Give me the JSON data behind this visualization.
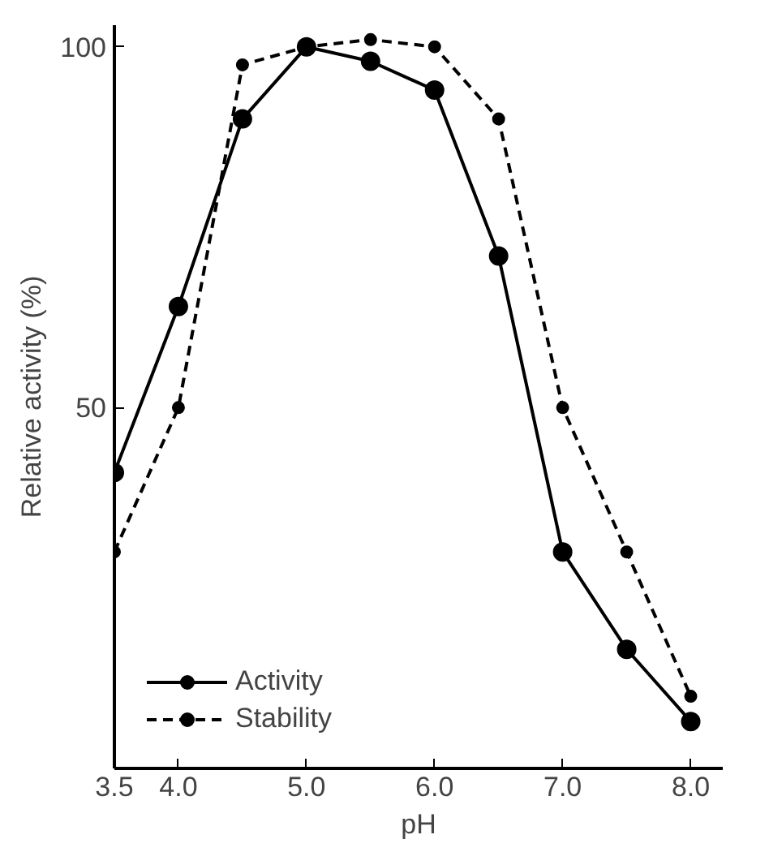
{
  "chart_data": {
    "type": "line",
    "xlabel": "pH",
    "ylabel": "Relative activity (%)",
    "x": [
      3.5,
      4.0,
      4.5,
      5.0,
      5.5,
      6.0,
      6.5,
      7.0,
      7.5,
      8.0
    ],
    "series": [
      {
        "name": "Activity",
        "color": "#000000",
        "line_style": "solid",
        "values": [
          41,
          64,
          90,
          100,
          98,
          94,
          71,
          30,
          16.5,
          6.5
        ]
      },
      {
        "name": "Stability",
        "color": "#000000",
        "line_style": "dashed",
        "values": [
          30,
          50,
          97.5,
          100,
          101,
          100,
          90,
          50,
          30,
          10
        ]
      }
    ],
    "xlim": [
      3.5,
      8.25
    ],
    "ylim": [
      0,
      103
    ],
    "xticks": [
      {
        "value": 3.5,
        "label": "3.5"
      },
      {
        "value": 4.0,
        "label": "4.0"
      },
      {
        "value": 5.0,
        "label": "5.0"
      },
      {
        "value": 6.0,
        "label": "6.0"
      },
      {
        "value": 7.0,
        "label": "7.0"
      },
      {
        "value": 8.0,
        "label": "8.0"
      }
    ],
    "yticks": [
      50,
      100
    ],
    "grid": false,
    "legend": "bottom left",
    "marker": "circle"
  }
}
